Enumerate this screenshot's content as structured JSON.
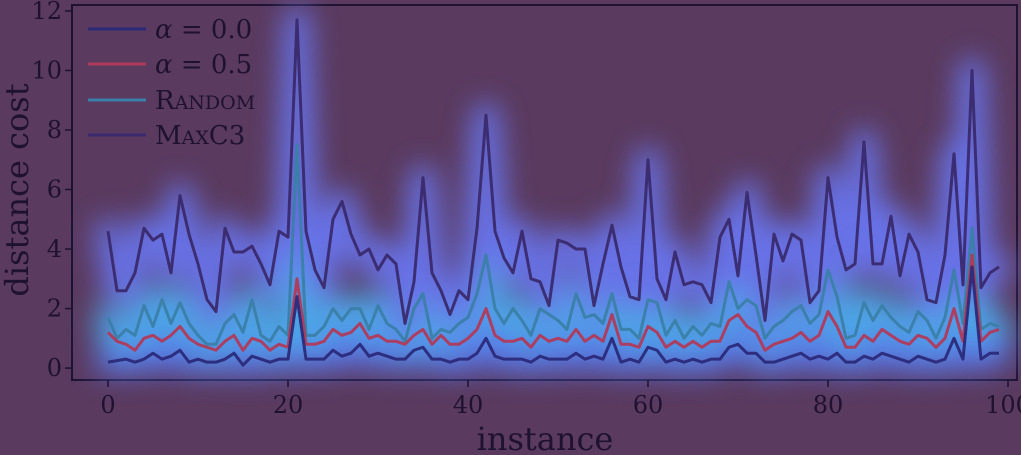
{
  "chart_data": {
    "type": "line",
    "title": "",
    "xlabel": "instance",
    "ylabel": "distance cost",
    "xlim": [
      -4,
      101
    ],
    "ylim": [
      -0.4,
      12.2
    ],
    "xticks": [
      0,
      20,
      40,
      60,
      80,
      100
    ],
    "yticks": [
      0,
      2,
      4,
      6,
      8,
      10,
      12
    ],
    "grid": false,
    "legend_placement": "top-left",
    "x": [
      0,
      1,
      2,
      3,
      4,
      5,
      6,
      7,
      8,
      9,
      10,
      11,
      12,
      13,
      14,
      15,
      16,
      17,
      18,
      19,
      20,
      21,
      22,
      23,
      24,
      25,
      26,
      27,
      28,
      29,
      30,
      31,
      32,
      33,
      34,
      35,
      36,
      37,
      38,
      39,
      40,
      41,
      42,
      43,
      44,
      45,
      46,
      47,
      48,
      49,
      50,
      51,
      52,
      53,
      54,
      55,
      56,
      57,
      58,
      59,
      60,
      61,
      62,
      63,
      64,
      65,
      66,
      67,
      68,
      69,
      70,
      71,
      72,
      73,
      74,
      75,
      76,
      77,
      78,
      79,
      80,
      81,
      82,
      83,
      84,
      85,
      86,
      87,
      88,
      89,
      90,
      91,
      92,
      93,
      94,
      95,
      96,
      97,
      98,
      99
    ],
    "series": [
      {
        "name": "α = 0.0",
        "color": "#2b2a7a",
        "values": [
          0.2,
          0.25,
          0.3,
          0.2,
          0.3,
          0.5,
          0.3,
          0.4,
          0.6,
          0.2,
          0.3,
          0.2,
          0.2,
          0.3,
          0.5,
          0.1,
          0.4,
          0.3,
          0.2,
          0.3,
          0.3,
          2.4,
          0.3,
          0.3,
          0.3,
          0.6,
          0.4,
          0.5,
          0.8,
          0.4,
          0.5,
          0.4,
          0.3,
          0.3,
          0.6,
          0.7,
          0.3,
          0.3,
          0.2,
          0.3,
          0.3,
          0.5,
          1.0,
          0.4,
          0.3,
          0.3,
          0.3,
          0.2,
          0.4,
          0.3,
          0.3,
          0.3,
          0.5,
          0.3,
          0.4,
          0.3,
          1.0,
          0.2,
          0.3,
          0.2,
          0.7,
          0.6,
          0.2,
          0.3,
          0.2,
          0.3,
          0.2,
          0.3,
          0.3,
          0.7,
          0.8,
          0.5,
          0.5,
          0.2,
          0.2,
          0.3,
          0.4,
          0.5,
          0.3,
          0.4,
          0.3,
          0.5,
          0.2,
          0.2,
          0.4,
          0.3,
          0.5,
          0.4,
          0.3,
          0.2,
          0.4,
          0.3,
          0.2,
          0.3,
          1.0,
          0.3,
          3.4,
          0.3,
          0.5,
          0.5
        ]
      },
      {
        "name": "α = 0.5",
        "color": "#b03a5a",
        "values": [
          1.2,
          0.9,
          0.8,
          0.6,
          1.0,
          1.1,
          0.9,
          1.1,
          1.4,
          1.0,
          0.8,
          0.7,
          0.6,
          0.9,
          1.1,
          0.6,
          1.0,
          0.9,
          0.6,
          0.8,
          0.7,
          3.0,
          0.8,
          0.8,
          0.9,
          1.3,
          1.1,
          1.2,
          1.5,
          1.0,
          1.1,
          0.9,
          0.9,
          0.8,
          1.1,
          1.3,
          0.8,
          1.1,
          0.8,
          0.8,
          1.0,
          1.3,
          2.0,
          1.1,
          0.9,
          0.9,
          1.0,
          0.7,
          1.1,
          0.9,
          1.0,
          0.9,
          1.3,
          0.9,
          1.1,
          0.9,
          1.8,
          0.8,
          0.8,
          0.7,
          1.4,
          1.2,
          0.7,
          0.9,
          0.7,
          0.9,
          0.7,
          0.9,
          0.9,
          1.6,
          1.8,
          1.4,
          1.2,
          0.6,
          0.8,
          0.9,
          1.0,
          1.2,
          0.9,
          1.1,
          1.9,
          1.4,
          0.7,
          0.7,
          1.1,
          0.9,
          1.3,
          1.1,
          0.9,
          0.8,
          1.1,
          1.0,
          0.7,
          1.0,
          2.0,
          0.9,
          3.8,
          0.9,
          1.2,
          1.3
        ]
      },
      {
        "name": "Random",
        "color": "#3a7fa8",
        "values": [
          1.7,
          1.0,
          1.3,
          1.1,
          2.1,
          1.4,
          2.3,
          1.5,
          2.2,
          1.5,
          1.1,
          0.8,
          0.8,
          1.5,
          1.8,
          1.2,
          2.3,
          1.1,
          0.9,
          1.4,
          1.1,
          7.5,
          1.1,
          1.1,
          1.4,
          2.0,
          1.6,
          2.0,
          2.0,
          1.3,
          2.1,
          1.5,
          1.3,
          0.9,
          2.0,
          2.5,
          1.0,
          1.3,
          1.2,
          1.5,
          1.7,
          2.5,
          3.8,
          2.0,
          1.5,
          2.0,
          1.6,
          1.1,
          2.0,
          1.8,
          1.6,
          1.3,
          2.5,
          1.7,
          1.8,
          1.5,
          2.5,
          1.3,
          1.3,
          1.0,
          2.3,
          2.2,
          1.1,
          1.6,
          1.0,
          1.4,
          1.1,
          1.5,
          1.4,
          2.9,
          2.0,
          2.3,
          2.1,
          1.0,
          1.4,
          1.6,
          1.9,
          2.1,
          1.5,
          1.8,
          3.3,
          2.4,
          1.0,
          1.1,
          2.2,
          1.6,
          2.1,
          1.7,
          1.4,
          1.2,
          1.9,
          1.6,
          1.0,
          1.7,
          3.3,
          1.5,
          4.7,
          1.3,
          1.5,
          1.4
        ]
      },
      {
        "name": "MaxC3",
        "color": "#3a2a6e",
        "values": [
          4.6,
          2.6,
          2.6,
          3.2,
          4.7,
          4.3,
          4.5,
          3.2,
          5.8,
          4.5,
          3.5,
          2.3,
          1.9,
          4.7,
          3.9,
          3.9,
          4.1,
          3.5,
          2.8,
          4.6,
          4.4,
          11.7,
          4.6,
          3.3,
          2.7,
          5.0,
          5.6,
          4.5,
          3.8,
          4.0,
          3.3,
          3.8,
          3.5,
          1.5,
          2.9,
          6.4,
          3.2,
          2.6,
          1.8,
          2.6,
          2.3,
          4.7,
          8.5,
          4.6,
          3.7,
          3.2,
          4.6,
          3.0,
          2.9,
          2.1,
          4.3,
          4.2,
          4.0,
          4.0,
          2.1,
          3.5,
          4.8,
          3.4,
          2.4,
          2.3,
          7.0,
          3.0,
          2.3,
          3.9,
          2.8,
          2.9,
          2.8,
          2.2,
          4.4,
          5.0,
          3.1,
          5.9,
          3.8,
          1.6,
          4.5,
          3.6,
          4.5,
          4.3,
          2.2,
          2.6,
          6.4,
          4.4,
          3.3,
          3.5,
          7.6,
          3.5,
          3.5,
          5.1,
          3.1,
          4.5,
          3.9,
          2.3,
          2.2,
          3.8,
          7.2,
          2.8,
          10.0,
          2.7,
          3.2,
          3.4
        ]
      }
    ],
    "legend": [
      {
        "sym": "α",
        "rest": " = 0.0"
      },
      {
        "sym": "α",
        "rest": " = 0.5"
      },
      {
        "cap1": "R",
        "small": "ANDOM"
      },
      {
        "cap1": "M",
        "small": "AX",
        "cap2": "C3"
      }
    ]
  }
}
